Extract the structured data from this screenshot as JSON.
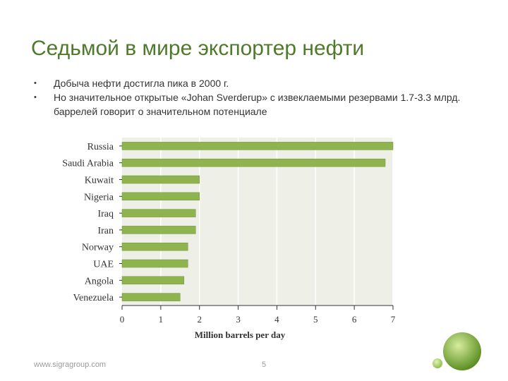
{
  "slide": {
    "title": "Седьмой в мире экспортер нефти",
    "bullets": [
      "Добыча нефти достигла пика в 2000 г.",
      "Но значительное открытые «Johan Sverderup» с извеклаемыми резервами 1.7-3.3 млрд. баррелей говорит о значительном потенциале"
    ],
    "bullet_glyph": "•",
    "footer_url": "www.sigragroup.com",
    "page_number": "5"
  },
  "colors": {
    "title": "#4f7a2b",
    "bar": "#8fb34f",
    "bar_edge": "#6f9535",
    "plot_bg": "#eef0e8",
    "grid": "#ffffff",
    "axis": "#333333",
    "deco_dark": "#5c8f22",
    "deco_light": "#b6d77a"
  },
  "chart_data": {
    "type": "bar",
    "orientation": "horizontal",
    "categories": [
      "Russia",
      "Saudi Arabia",
      "Kuwait",
      "Nigeria",
      "Iraq",
      "Iran",
      "Norway",
      "UAE",
      "Angola",
      "Venezuela"
    ],
    "values": [
      7.0,
      6.8,
      2.0,
      2.0,
      1.9,
      1.9,
      1.7,
      1.7,
      1.6,
      1.5
    ],
    "xlabel": "Million barrels per day",
    "ylabel": "",
    "xlim": [
      0,
      7
    ],
    "xticks": [
      "0",
      "1",
      "2",
      "3",
      "4",
      "5",
      "6",
      "7"
    ],
    "grid": true
  }
}
